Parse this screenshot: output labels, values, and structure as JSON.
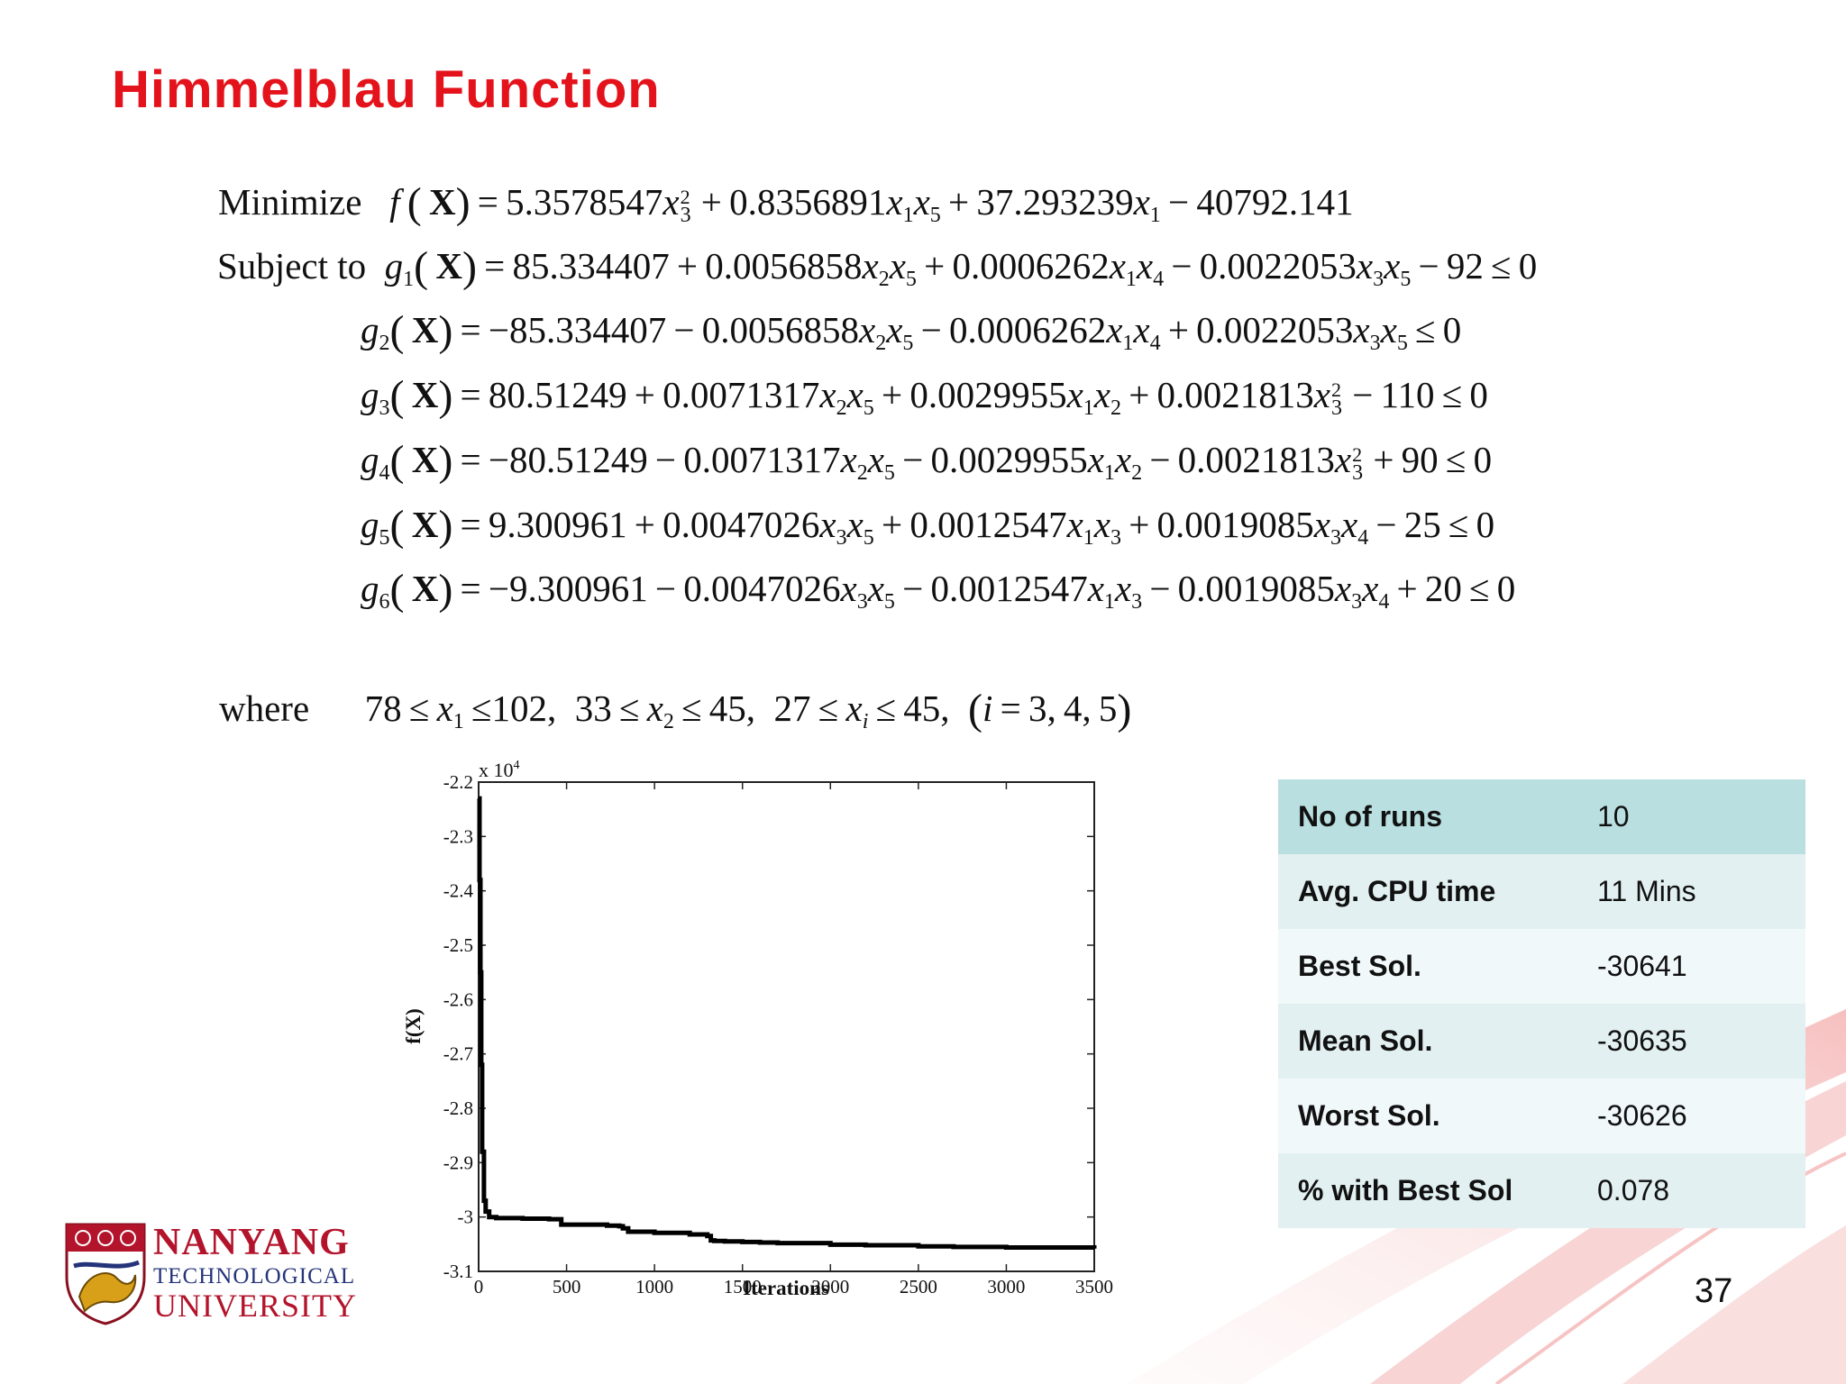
{
  "slide": {
    "title": "Himmelblau Function",
    "page_number": "37"
  },
  "problem": {
    "minimize_label": "Minimize",
    "subject_label": "Subject to",
    "where_label": "where",
    "objective": "f(X) = 5.3578547x3^2 + 0.8356891x1x5 + 37.293239x1 − 40792.141",
    "constraints": [
      "g1(X) = 85.334407 + 0.0056858x2x5 + 0.0006262x1x4 − 0.0022053x3x5 − 92 ≤ 0",
      "g2(X) = −85.334407 − 0.0056858x2x5 − 0.0006262x1x4 + 0.0022053x3x5 ≤ 0",
      "g3(X) = 80.51249 + 0.0071317x2x5 + 0.0029955x1x2 + 0.0021813x3^2 − 110 ≤ 0",
      "g4(X) = −80.51249 − 0.0071317x2x5 − 0.0029955x1x2 − 0.0021813x3^2 + 90 ≤ 0",
      "g5(X) = 9.300961 + 0.0047026x3x5 + 0.0012547x1x3 + 0.0019085x3x4 − 25 ≤ 0",
      "g6(X) = −9.300961 − 0.0047026x3x5 − 0.0012547x1x3 − 0.0019085x3x4 + 20 ≤ 0"
    ],
    "bounds": "78 ≤ x1 ≤ 102, 33 ≤ x2 ≤ 45, 27 ≤ xi ≤ 45, (i = 3,4,5)"
  },
  "chart_data": {
    "type": "line",
    "xlabel": "Iterations",
    "ylabel": "f(X)",
    "y_multiplier_label": "x 10",
    "y_multiplier_exp": "4",
    "xlim": [
      0,
      3500
    ],
    "ylim": [
      -3.1,
      -2.2
    ],
    "x_ticks": [
      0,
      500,
      1000,
      1500,
      2000,
      2500,
      3000,
      3500
    ],
    "x_tick_labels": [
      "0",
      "500",
      "1000",
      "1500",
      "2000",
      "2500",
      "3000",
      "3500"
    ],
    "y_ticks": [
      -2.2,
      -2.3,
      -2.4,
      -2.5,
      -2.6,
      -2.7,
      -2.8,
      -2.9,
      -3.0,
      -3.1
    ],
    "y_tick_labels": [
      "-2.2",
      "-2.3",
      "-2.4",
      "-2.5",
      "-2.6",
      "-2.7",
      "-2.8",
      "-2.9",
      "-3",
      "-3.1"
    ],
    "series": [
      {
        "x": [
          0,
          5,
          10,
          15,
          20,
          30,
          40,
          60,
          80,
          100,
          250,
          400,
          450,
          470,
          700,
          730,
          800,
          820,
          850,
          1000,
          1200,
          1300,
          1320,
          1340,
          1400,
          1500,
          1600,
          1700,
          2000,
          2200,
          2500,
          2700,
          3000,
          3500
        ],
        "y": [
          -2.23,
          -2.38,
          -2.55,
          -2.72,
          -2.88,
          -2.97,
          -2.99,
          -3.0,
          -3.0,
          -3.002,
          -3.003,
          -3.004,
          -3.004,
          -3.014,
          -3.014,
          -3.016,
          -3.017,
          -3.021,
          -3.027,
          -3.029,
          -3.032,
          -3.035,
          -3.043,
          -3.044,
          -3.045,
          -3.046,
          -3.047,
          -3.048,
          -3.051,
          -3.052,
          -3.054,
          -3.055,
          -3.056,
          -3.058
        ]
      }
    ],
    "grid": false,
    "line_color": "#000000"
  },
  "stats_table": {
    "rows": [
      {
        "label": "No of runs",
        "value": "10"
      },
      {
        "label": "Avg. CPU time",
        "value": "11 Mins"
      },
      {
        "label": "Best Sol.",
        "value": "-30641"
      },
      {
        "label": "Mean Sol.",
        "value": "-30635"
      },
      {
        "label": "Worst Sol.",
        "value": "-30626"
      },
      {
        "label": "% with Best Sol",
        "value": "0.078"
      }
    ]
  },
  "logo": {
    "line1": "NANYANG",
    "line2": "TECHNOLOGICAL",
    "line3": "UNIVERSITY"
  },
  "colors": {
    "title": "#e3121b",
    "table_header": "#b9dfe1",
    "table_row": "#e2f0f1",
    "swoosh": "#f4b8b8"
  }
}
